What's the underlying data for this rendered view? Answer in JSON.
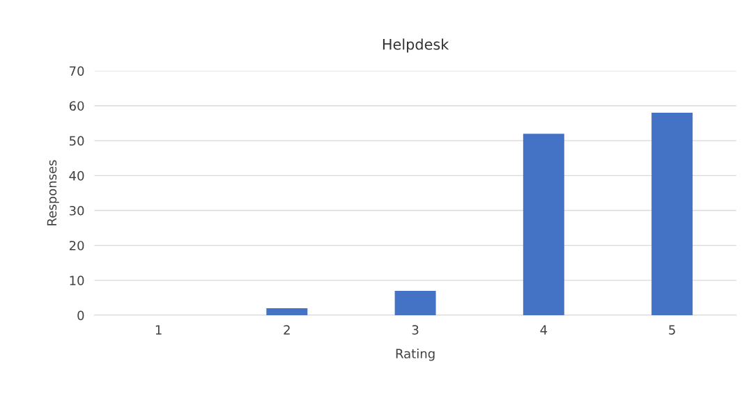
{
  "chart_data": {
    "type": "bar",
    "title": "Helpdesk",
    "xlabel": "Rating",
    "ylabel": "Responses",
    "categories": [
      "1",
      "2",
      "3",
      "4",
      "5"
    ],
    "values": [
      0,
      2,
      7,
      52,
      58
    ],
    "color": "#4472c4",
    "ylim": [
      0,
      70
    ],
    "yticks": [
      0,
      10,
      20,
      30,
      40,
      50,
      60,
      70
    ],
    "grid": "y",
    "legend": false
  }
}
